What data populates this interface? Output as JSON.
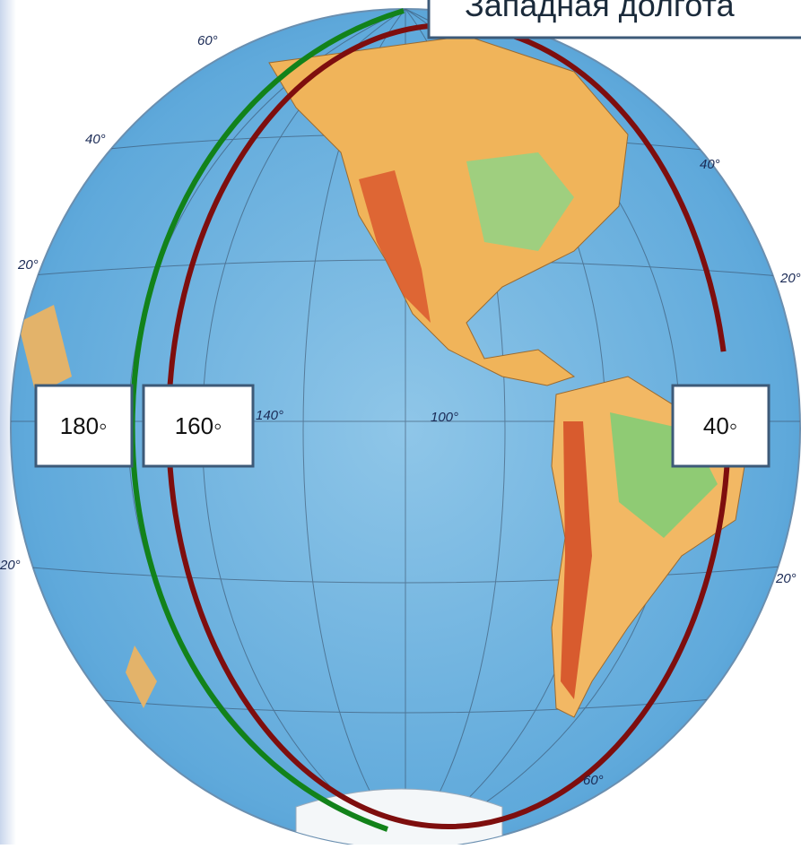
{
  "title": "Западная долгота",
  "degree_boxes": [
    "180◦",
    "160◦",
    "40◦"
  ],
  "map_labels": [
    "140°",
    "100°",
    "20°",
    "20°",
    "40°",
    "40°",
    "60°",
    "60°",
    "20°",
    "20°"
  ]
}
